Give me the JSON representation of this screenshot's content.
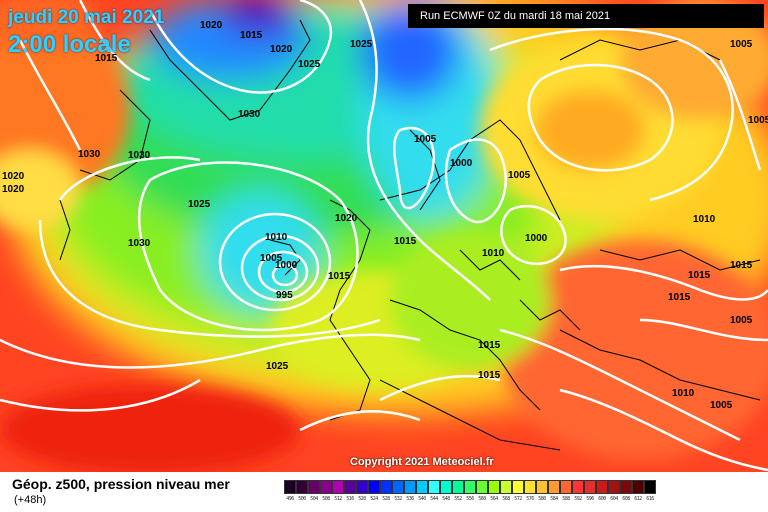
{
  "header": {
    "date_line": "jeudi 20 mai 2021",
    "time_line": "2:00 locale",
    "run_info": "Run ECMWF 0Z du mardi 18 mai 2021"
  },
  "copyright": "Copyright 2021 Meteociel.fr",
  "legend": {
    "title": "Géop. z500, pression niveau mer",
    "subtitle": "(+48h)",
    "scale": [
      {
        "value": "496",
        "color": "#1a0021"
      },
      {
        "value": "500",
        "color": "#330033"
      },
      {
        "value": "504",
        "color": "#660066"
      },
      {
        "value": "508",
        "color": "#8a008a"
      },
      {
        "value": "512",
        "color": "#b000b0"
      },
      {
        "value": "516",
        "color": "#5a009a"
      },
      {
        "value": "520",
        "color": "#3300cc"
      },
      {
        "value": "524",
        "color": "#0000ff"
      },
      {
        "value": "528",
        "color": "#0033ff"
      },
      {
        "value": "532",
        "color": "#0066ff"
      },
      {
        "value": "536",
        "color": "#0099ff"
      },
      {
        "value": "540",
        "color": "#00ccff"
      },
      {
        "value": "544",
        "color": "#33ffff"
      },
      {
        "value": "548",
        "color": "#00ffcc"
      },
      {
        "value": "552",
        "color": "#00ff99"
      },
      {
        "value": "556",
        "color": "#33ff66"
      },
      {
        "value": "560",
        "color": "#66ff33"
      },
      {
        "value": "564",
        "color": "#99ff00"
      },
      {
        "value": "568",
        "color": "#ccff33"
      },
      {
        "value": "572",
        "color": "#ffff33"
      },
      {
        "value": "576",
        "color": "#ffe033"
      },
      {
        "value": "580",
        "color": "#ffc033"
      },
      {
        "value": "584",
        "color": "#ff9933"
      },
      {
        "value": "588",
        "color": "#ff6633"
      },
      {
        "value": "592",
        "color": "#ff3333"
      },
      {
        "value": "596",
        "color": "#e62e2e"
      },
      {
        "value": "600",
        "color": "#cc1a1a"
      },
      {
        "value": "604",
        "color": "#a31212"
      },
      {
        "value": "608",
        "color": "#7a0a0a"
      },
      {
        "value": "612",
        "color": "#4d0000"
      },
      {
        "value": "616",
        "color": "#000000"
      }
    ]
  },
  "isobar_labels": [
    "1020",
    "1015",
    "1015",
    "1020",
    "1025",
    "1025",
    "1030",
    "1030",
    "1030",
    "1020",
    "1020",
    "1025",
    "1030",
    "1010",
    "1005",
    "1000",
    "995",
    "1015",
    "1020",
    "1015",
    "1025",
    "1005",
    "1000",
    "1005",
    "1010",
    "1000",
    "1015",
    "1015",
    "1005",
    "1005",
    "1010",
    "1015",
    "1015",
    "1015",
    "1005",
    "1010",
    "1005"
  ]
}
